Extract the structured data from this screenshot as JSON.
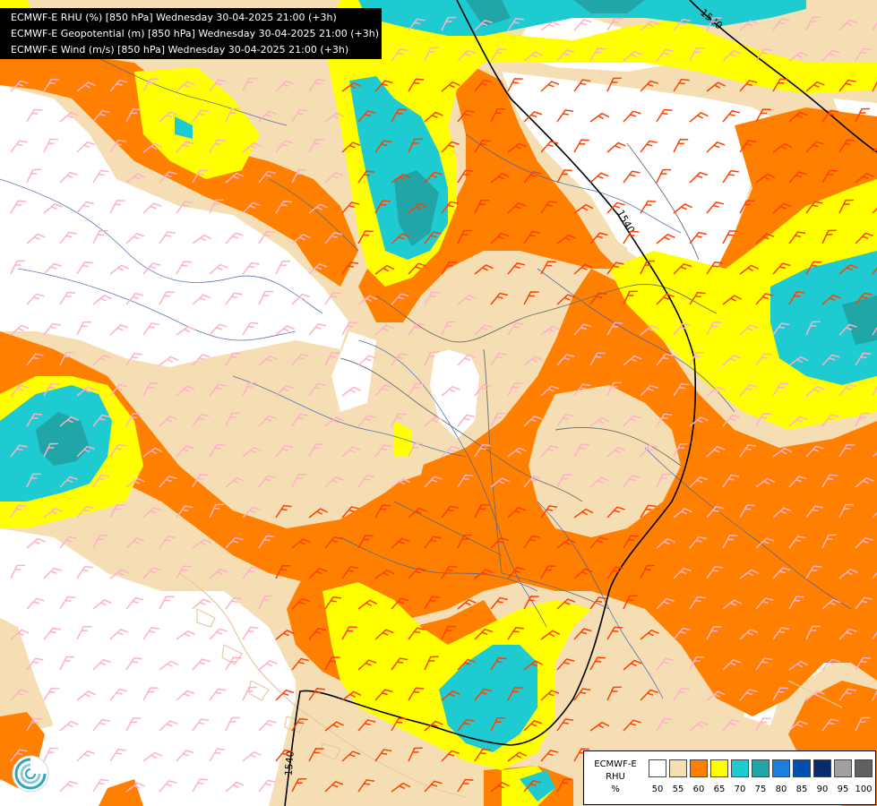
{
  "header": {
    "line1": "ECMWF-E RHU (%) [850 hPa] Wednesday 30-04-2025 21:00 (+3h)",
    "line2": "ECMWF-E Geopotential (m) [850 hPa] Wednesday 30-04-2025 21:00 (+3h)",
    "line3": "ECMWF-E Wind (m/s) [850 hPa] Wednesday 30-04-2025 21:00 (+3h)"
  },
  "contours": {
    "label_1520": "1520",
    "label_1540_a": "1540",
    "label_1540_b": "1540"
  },
  "legend": {
    "title_line1": "ECMWF-E",
    "title_line2": "RHU",
    "title_line3": "%",
    "items": [
      {
        "value": "50",
        "color": "#ffffff"
      },
      {
        "value": "55",
        "color": "#f5deb3"
      },
      {
        "value": "60",
        "color": "#ff8000"
      },
      {
        "value": "65",
        "color": "#ffff00"
      },
      {
        "value": "70",
        "color": "#1ecbd0"
      },
      {
        "value": "75",
        "color": "#20a6a6"
      },
      {
        "value": "80",
        "color": "#1e7ee0"
      },
      {
        "value": "85",
        "color": "#0050b0"
      },
      {
        "value": "90",
        "color": "#0a2a6e"
      },
      {
        "value": "95",
        "color": "#a0a0a0"
      },
      {
        "value": "100",
        "color": "#606060"
      }
    ]
  },
  "colors": {
    "rhu50": "#ffffff",
    "rhu55": "#f5deb3",
    "rhu60": "#ff8000",
    "rhu65": "#ffff00",
    "rhu70": "#1ecbd0",
    "rhu75": "#20a6a6",
    "border": "#6b6b6b",
    "river": "#3a5fb0",
    "coast": "#e8c9a0",
    "contour": "#000000",
    "wind_high": "#ff4000",
    "wind_low": "#ffb0c8"
  },
  "logo_icon": "ecmwf-logo-icon"
}
